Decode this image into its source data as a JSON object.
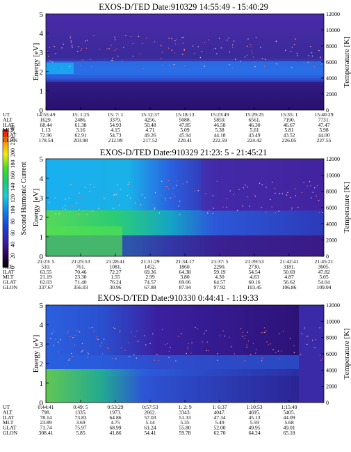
{
  "colorbar": {
    "label": "Second Harmonic Current",
    "ticks": [
      "0",
      "20",
      "40",
      "60",
      "80",
      "100",
      "120",
      "140",
      "160",
      "180",
      "200",
      "220",
      "240"
    ]
  },
  "chart_data": [
    {
      "type": "heatmap",
      "title": "EXOS-D/TED   Date:910329   14:55:49 - 15:40:29",
      "ylabel": "Energy [eV]",
      "y2label": "Temperature [K]",
      "ylim": [
        0,
        5
      ],
      "y2lim": [
        0,
        12000
      ],
      "yticks": [
        "0",
        "1",
        "2",
        "3",
        "4",
        "5"
      ],
      "y2ticks": [
        "0",
        "2000",
        "4000",
        "6000",
        "8000",
        "10000",
        "12000"
      ],
      "ephemeris": {
        "labels": [
          "UT",
          "ALT",
          "ILAT",
          "MLT",
          "GLAT",
          "GLON"
        ],
        "columns": [
          [
            "14:55:49",
            "1629.",
            "68.44",
            "1.13",
            "72.96",
            "178.54"
          ],
          [
            "15: 1:25",
            "2486.",
            "61.38",
            "3.16",
            "62.91",
            "203.98"
          ],
          [
            "15: 7: 1",
            "3379.",
            "54.93",
            "4.15",
            "54.73",
            "212.99"
          ],
          [
            "15:12:37",
            "4256.",
            "50.48",
            "4.71",
            "49.26",
            "217.52"
          ],
          [
            "15:18:13",
            "5088.",
            "47.85",
            "5.09",
            "45.94",
            "220.41"
          ],
          [
            "15:23:49",
            "5859.",
            "46.58",
            "5.38",
            "44.18",
            "222.59"
          ],
          [
            "15:29:25",
            "6561.",
            "46.30",
            "5.61",
            "43.49",
            "224.42"
          ],
          [
            "15:35: 1",
            "7190.",
            "46.67",
            "5.81",
            "43.52",
            "226.05"
          ],
          [
            "15:40:29",
            "7731.",
            "47.47",
            "5.98",
            "44.00",
            "227.55"
          ]
        ]
      }
    },
    {
      "type": "heatmap",
      "title": "EXOS-D/TED   Date:910329  21:23: 5 - 21:45:21",
      "ylabel": "Energy [eV]",
      "y2label": "Temperature [K]",
      "ylim": [
        0,
        5
      ],
      "y2lim": [
        0,
        12000
      ],
      "yticks": [
        "0",
        "1",
        "2",
        "3",
        "4",
        "5"
      ],
      "y2ticks": [
        "0",
        "2000",
        "4000",
        "6000",
        "8000",
        "10000",
        "12000"
      ],
      "ephemeris": {
        "labels": [
          "UT",
          "ALT",
          "ILAT",
          "MLT",
          "GLAT",
          "GLON"
        ],
        "columns": [
          [
            "21:23: 5",
            "510.",
            "63.55",
            "21.19",
            "62.03",
            "337.67"
          ],
          [
            "21:25:53",
            "761.",
            "70.46",
            "23.30",
            "71.40",
            "356.03"
          ],
          [
            "21:28:41",
            "1081.",
            "72.27",
            "1.55",
            "76.24",
            "30.96"
          ],
          [
            "21:31:29",
            "1452.",
            "69.36",
            "2.99",
            "74.57",
            "67.88"
          ],
          [
            "21:34:17",
            "1860.",
            "64.38",
            "3.80",
            "69.66",
            "87.94"
          ],
          [
            "21:37: 5",
            "2290.",
            "59.19",
            "4.30",
            "64.57",
            "97.92"
          ],
          [
            "21:39:53",
            "2730.",
            "54.54",
            "4.63",
            "60.16",
            "103.45"
          ],
          [
            "21:42:41",
            "3181.",
            "50.69",
            "4.87",
            "56.62",
            "106.86"
          ],
          [
            "21:45:21",
            "3605.",
            "47.82",
            "5.05",
            "54.04",
            "109.04"
          ]
        ]
      }
    },
    {
      "type": "heatmap",
      "title": "EXOS-D/TED   Date:910330  0:44:41 - 1:19:33",
      "ylabel": "Energy [eV]",
      "y2label": "Temperature [K]",
      "ylim": [
        0,
        5
      ],
      "y2lim": [
        0,
        12000
      ],
      "yticks": [
        "0",
        "1",
        "2",
        "3",
        "4",
        "5"
      ],
      "y2ticks": [
        "0",
        "2000",
        "4000",
        "6000",
        "8000",
        "10000",
        "12000"
      ],
      "ephemeris": {
        "labels": [
          "UT",
          "ALT",
          "ILAT",
          "MLT",
          "GLAT",
          "GLON"
        ],
        "columns": [
          [
            "0:44:41",
            "798.",
            "78.14",
            "23.89",
            "71.74",
            "308.41"
          ],
          [
            "0:49: 5",
            "1335.",
            "73.83",
            "3.69",
            "75.97",
            "5.85"
          ],
          [
            "0:53:29",
            "1973.",
            "64.86",
            "4.75",
            "68.99",
            "41.86"
          ],
          [
            "0:57:53",
            "2662.",
            "57.03",
            "5.14",
            "61.24",
            "54.41"
          ],
          [
            "1: 2: 9",
            "3343.",
            "51.33",
            "5.35",
            "55.80",
            "59.78"
          ],
          [
            "1: 6:37",
            "4047.",
            "47.34",
            "5.49",
            "52.00",
            "62.70"
          ],
          [
            "1:10:53",
            "4695.",
            "45.13",
            "5.59",
            "49.95",
            "64.24"
          ],
          [
            "1:15:49",
            "5405.",
            "44.09",
            "5.68",
            "49.01",
            "65.18"
          ]
        ]
      }
    }
  ]
}
